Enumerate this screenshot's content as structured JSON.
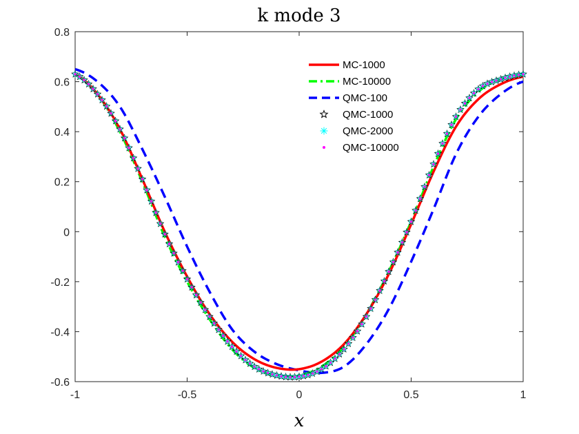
{
  "chart_data": {
    "type": "line",
    "title": "k mode 3",
    "xlabel": "x",
    "ylabel": "",
    "xlim": [
      -1,
      1
    ],
    "ylim": [
      -0.6,
      0.8
    ],
    "xticks": [
      -1,
      -0.5,
      0,
      0.5,
      1
    ],
    "xtick_labels": [
      "-1",
      "-0.5",
      "0",
      "0.5",
      "1"
    ],
    "yticks": [
      -0.6,
      -0.4,
      -0.2,
      0,
      0.2,
      0.4,
      0.6,
      0.8
    ],
    "ytick_labels": [
      "-0.6",
      "-0.4",
      "-0.2",
      "0",
      "0.2",
      "0.4",
      "0.6",
      "0.8"
    ],
    "legend_position": "top-right",
    "x": [
      -1.0,
      -0.9,
      -0.8,
      -0.7,
      -0.6,
      -0.5,
      -0.4,
      -0.3,
      -0.2,
      -0.1,
      0.0,
      0.1,
      0.2,
      0.3,
      0.4,
      0.5,
      0.6,
      0.7,
      0.8,
      0.9,
      1.0
    ],
    "series": [
      {
        "name": "MC-1000",
        "color": "#ff0000",
        "style": "solid",
        "values": [
          0.63,
          0.55,
          0.41,
          0.21,
          0.0,
          -0.18,
          -0.33,
          -0.44,
          -0.51,
          -0.545,
          -0.55,
          -0.52,
          -0.45,
          -0.33,
          -0.17,
          0.03,
          0.24,
          0.42,
          0.53,
          0.59,
          0.62
        ]
      },
      {
        "name": "MC-10000",
        "color": "#00ff00",
        "style": "dashdot",
        "values": [
          0.63,
          0.55,
          0.4,
          0.2,
          -0.02,
          -0.2,
          -0.35,
          -0.47,
          -0.545,
          -0.575,
          -0.575,
          -0.54,
          -0.46,
          -0.33,
          -0.16,
          0.04,
          0.26,
          0.45,
          0.56,
          0.61,
          0.63
        ]
      },
      {
        "name": "QMC-100",
        "color": "#0000ff",
        "style": "dashed",
        "values": [
          0.65,
          0.6,
          0.5,
          0.33,
          0.14,
          -0.06,
          -0.24,
          -0.39,
          -0.48,
          -0.53,
          -0.555,
          -0.565,
          -0.54,
          -0.45,
          -0.31,
          -0.12,
          0.09,
          0.31,
          0.46,
          0.55,
          0.6
        ]
      },
      {
        "name": "QMC-1000",
        "color": "#000000",
        "style": "marker-star",
        "values": [
          0.63,
          0.55,
          0.41,
          0.21,
          -0.01,
          -0.19,
          -0.34,
          -0.46,
          -0.54,
          -0.575,
          -0.58,
          -0.55,
          -0.47,
          -0.34,
          -0.16,
          0.04,
          0.27,
          0.46,
          0.57,
          0.61,
          0.63
        ]
      },
      {
        "name": "QMC-2000",
        "color": "#00ffff",
        "style": "marker-asterisk",
        "values": [
          0.63,
          0.55,
          0.41,
          0.21,
          -0.01,
          -0.19,
          -0.34,
          -0.46,
          -0.54,
          -0.575,
          -0.58,
          -0.55,
          -0.47,
          -0.34,
          -0.16,
          0.04,
          0.27,
          0.46,
          0.57,
          0.61,
          0.63
        ]
      },
      {
        "name": "QMC-10000",
        "color": "#ff00ff",
        "style": "marker-dot",
        "values": [
          0.63,
          0.55,
          0.41,
          0.21,
          -0.01,
          -0.19,
          -0.34,
          -0.46,
          -0.54,
          -0.575,
          -0.58,
          -0.55,
          -0.47,
          -0.34,
          -0.16,
          0.04,
          0.27,
          0.46,
          0.57,
          0.61,
          0.63
        ]
      }
    ]
  }
}
